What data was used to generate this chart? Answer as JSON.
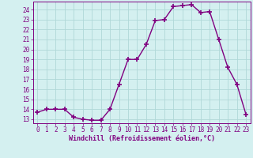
{
  "x": [
    0,
    1,
    2,
    3,
    4,
    5,
    6,
    7,
    8,
    9,
    10,
    11,
    12,
    13,
    14,
    15,
    16,
    17,
    18,
    19,
    20,
    21,
    22,
    23
  ],
  "y": [
    13.7,
    14.0,
    14.0,
    14.0,
    13.2,
    13.0,
    12.9,
    12.9,
    14.0,
    16.5,
    19.0,
    19.0,
    20.5,
    22.9,
    23.0,
    24.3,
    24.4,
    24.5,
    23.7,
    23.8,
    21.0,
    18.2,
    16.5,
    13.5
  ],
  "line_color": "#800080",
  "marker": "+",
  "markersize": 4,
  "bg_color": "#d4f0f0",
  "grid_color": "#b0d8d8",
  "xlabel": "Windchill (Refroidissement éolien,°C)",
  "ytick_labels": [
    "13",
    "14",
    "15",
    "16",
    "17",
    "18",
    "19",
    "20",
    "21",
    "22",
    "23",
    "24"
  ],
  "ytick_vals": [
    13,
    14,
    15,
    16,
    17,
    18,
    19,
    20,
    21,
    22,
    23,
    24
  ],
  "xlim": [
    -0.5,
    23.5
  ],
  "ylim": [
    12.6,
    24.8
  ],
  "tick_color": "#800080",
  "label_color": "#800080",
  "tick_fontsize": 5.5,
  "xlabel_fontsize": 6.0,
  "linewidth": 1.0,
  "markeredgewidth": 1.2
}
